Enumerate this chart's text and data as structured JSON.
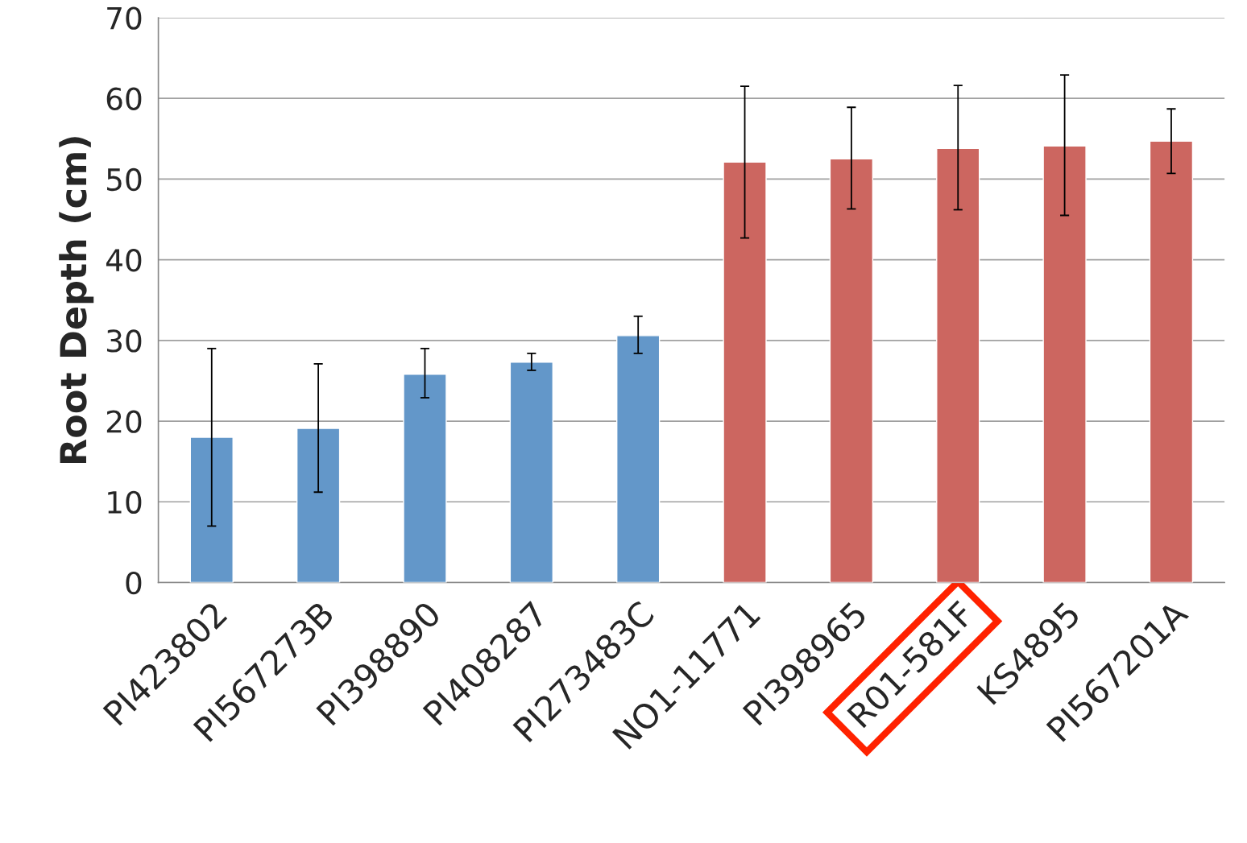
{
  "chart_data": {
    "type": "bar",
    "ylabel": "Root Depth (cm)",
    "categories": [
      "PI423802",
      "PI567273B",
      "PI398890",
      "PI408287",
      "PI273483C",
      "NO1-11771",
      "PI398965",
      "R01-581F",
      "KS4895",
      "PI567201A"
    ],
    "values": [
      18.0,
      19.1,
      25.8,
      27.3,
      30.6,
      52.1,
      52.5,
      53.8,
      54.1,
      54.7
    ],
    "colors": [
      "#6397c9",
      "#6397c9",
      "#6397c9",
      "#6397c9",
      "#6397c9",
      "#cc6660",
      "#cc6660",
      "#cc6660",
      "#cc6660",
      "#cc6660"
    ],
    "errors": [
      [
        7.0,
        29.0
      ],
      [
        11.2,
        27.1
      ],
      [
        22.9,
        29.0
      ],
      [
        26.3,
        28.4
      ],
      [
        28.4,
        33.0
      ],
      [
        42.7,
        61.5
      ],
      [
        46.3,
        58.9
      ],
      [
        46.2,
        61.6
      ],
      [
        45.5,
        62.9
      ],
      [
        50.7,
        58.7
      ]
    ],
    "ylim": [
      0,
      70
    ],
    "yticks": [
      0,
      10,
      20,
      30,
      40,
      50,
      60,
      70
    ],
    "grid": "y"
  }
}
